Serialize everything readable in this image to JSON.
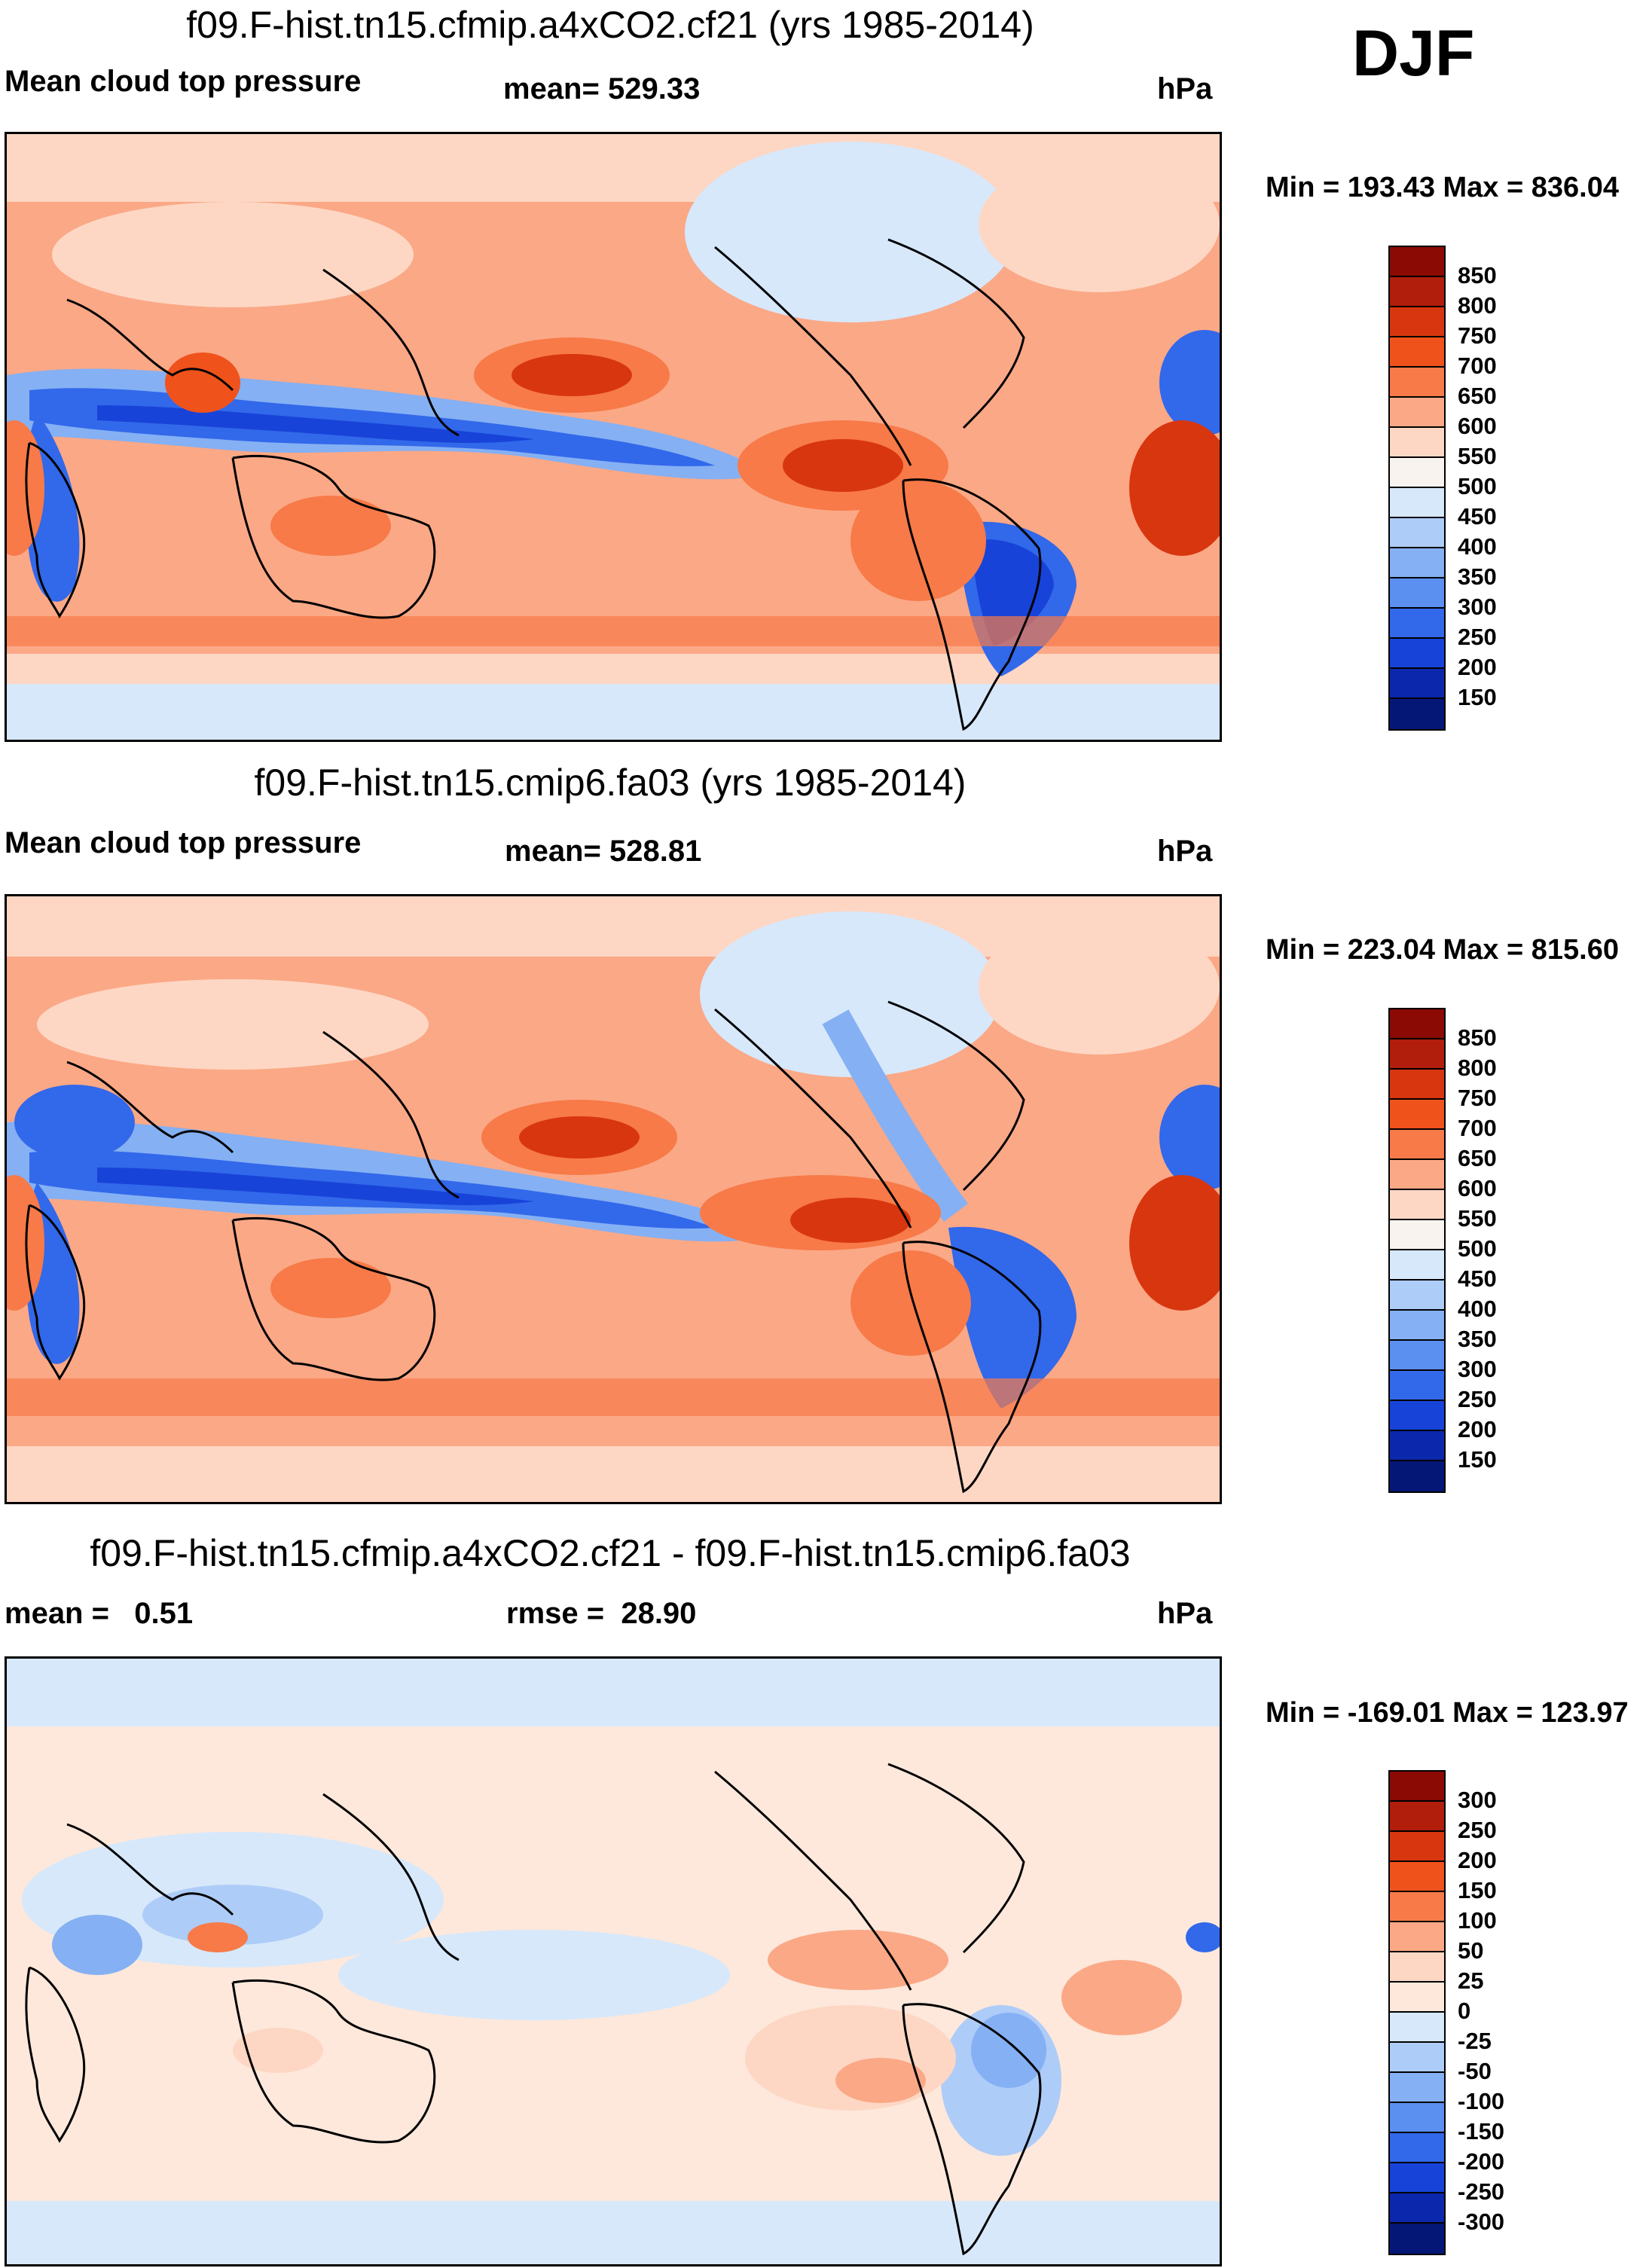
{
  "season": "DJF",
  "panels": [
    {
      "title": "f09.F-hist.tn15.cfmip.a4xCO2.cf21 (yrs 1985-2014)",
      "left_label": "Mean cloud top pressure",
      "center_label": "mean= 529.33",
      "units": "hPa",
      "minmax": "Min = 193.43 Max = 836.04",
      "colorbar": {
        "colors": [
          "#8b0a04",
          "#b11e0c",
          "#d8360f",
          "#f0521c",
          "#f77a48",
          "#fba886",
          "#fdd7c4",
          "#f9f3f0",
          "#d7e8fb",
          "#aeccf8",
          "#85b0f3",
          "#5b8ff0",
          "#3268ea",
          "#1843d8",
          "#0b27ac",
          "#051776"
        ],
        "labels": [
          "850",
          "800",
          "750",
          "700",
          "650",
          "600",
          "550",
          "500",
          "450",
          "400",
          "350",
          "300",
          "250",
          "200",
          "150"
        ]
      }
    },
    {
      "title": "f09.F-hist.tn15.cmip6.fa03 (yrs 1985-2014)",
      "left_label": "Mean cloud top pressure",
      "center_label": "mean= 528.81",
      "units": "hPa",
      "minmax": "Min = 223.04 Max = 815.60",
      "colorbar": {
        "colors": [
          "#8b0a04",
          "#b11e0c",
          "#d8360f",
          "#f0521c",
          "#f77a48",
          "#fba886",
          "#fdd7c4",
          "#f9f3f0",
          "#d7e8fb",
          "#aeccf8",
          "#85b0f3",
          "#5b8ff0",
          "#3268ea",
          "#1843d8",
          "#0b27ac",
          "#051776"
        ],
        "labels": [
          "850",
          "800",
          "750",
          "700",
          "650",
          "600",
          "550",
          "500",
          "450",
          "400",
          "350",
          "300",
          "250",
          "200",
          "150"
        ]
      }
    },
    {
      "title": "f09.F-hist.tn15.cfmip.a4xCO2.cf21 - f09.F-hist.tn15.cmip6.fa03",
      "left_label": "mean =   0.51",
      "center_label": "rmse =  28.90",
      "units": "hPa",
      "minmax": "Min = -169.01 Max = 123.97",
      "colorbar": {
        "colors": [
          "#8b0a04",
          "#b11e0c",
          "#d8360f",
          "#f0521c",
          "#f77a48",
          "#fba886",
          "#fdd7c4",
          "#fde8db",
          "#d7e8fb",
          "#aeccf8",
          "#85b0f3",
          "#5b8ff0",
          "#3268ea",
          "#1843d8",
          "#0b27ac",
          "#051776"
        ],
        "labels": [
          "300",
          "250",
          "200",
          "150",
          "100",
          "50",
          "25",
          "0",
          "-25",
          "-50",
          "-100",
          "-150",
          "-200",
          "-250",
          "-300"
        ]
      }
    }
  ]
}
